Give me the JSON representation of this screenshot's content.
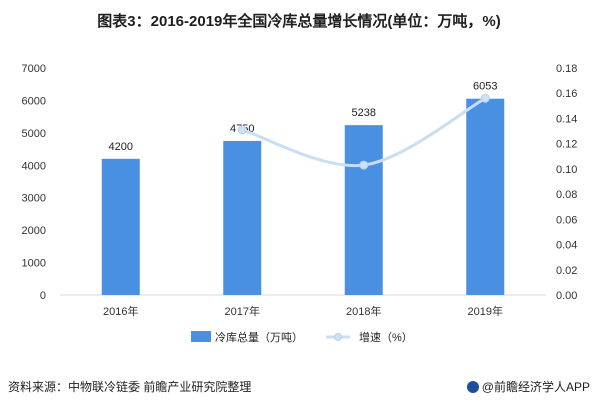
{
  "title": "图表3：2016-2019年全国冷库总量增长情况(单位：万吨，%)",
  "source": "资料来源：中物联冷链委 前瞻产业研究院整理",
  "credit": "@前瞻经济学人APP",
  "colors": {
    "bar": "#4a90e2",
    "line": "#c9def2",
    "marker": "#cfe1f5"
  },
  "chart_data": {
    "type": "bar",
    "categories": [
      "2016年",
      "2017年",
      "2018年",
      "2019年"
    ],
    "series": [
      {
        "name": "冷库总量（万吨）",
        "type": "bar",
        "axis": "left",
        "values": [
          4200,
          4750,
          5238,
          6053
        ]
      },
      {
        "name": "增速（%）",
        "type": "line",
        "axis": "right",
        "values": [
          null,
          0.131,
          0.103,
          0.156
        ]
      }
    ],
    "data_labels": [
      "4200",
      "4750",
      "5238",
      "6053"
    ],
    "ylim": [
      0,
      7000
    ],
    "yticks": [
      "0",
      "1000",
      "2000",
      "3000",
      "4000",
      "5000",
      "6000",
      "7000"
    ],
    "y2lim": [
      0,
      0.18
    ],
    "y2ticks": [
      "0.00",
      "0.02",
      "0.04",
      "0.06",
      "0.08",
      "0.10",
      "0.12",
      "0.14",
      "0.16",
      "0.18"
    ],
    "grid": false,
    "legend_position": "bottom"
  }
}
